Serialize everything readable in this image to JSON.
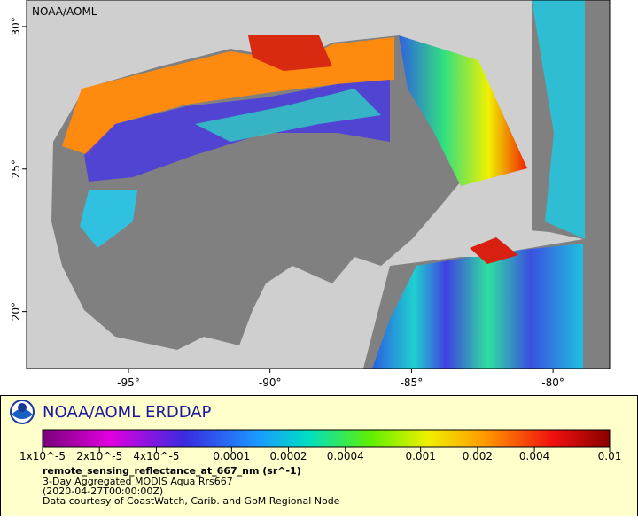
{
  "map": {
    "label": "NOAA/AOML",
    "xlim": [
      -98.6,
      -78.0
    ],
    "ylim": [
      18.0,
      30.93
    ],
    "xticks": [
      {
        "value": -95,
        "label": "-95°"
      },
      {
        "value": -90,
        "label": "-90°"
      },
      {
        "value": -85,
        "label": "-85°"
      },
      {
        "value": -80,
        "label": "-80°"
      }
    ],
    "yticks": [
      {
        "value": 20,
        "label": "20°"
      },
      {
        "value": 25,
        "label": "25°"
      },
      {
        "value": 30,
        "label": "30°"
      }
    ]
  },
  "legend": {
    "title": "NOAA/AOML ERDDAP",
    "scale": "log",
    "lim": [
      1e-05,
      0.01
    ],
    "ticks": [
      {
        "value": 1e-05,
        "label": "1x10^-5"
      },
      {
        "value": 2e-05,
        "label": "2x10^-5"
      },
      {
        "value": 4e-05,
        "label": "4x10^-5"
      },
      0.0001,
      0.0002,
      0.0004,
      0.001,
      0.002,
      0.004,
      0.01
    ],
    "variable": "remote_sensing_reflectance_at_667_nm (sr^-1)",
    "lines": [
      "3-Day Aggregated MODIS Aqua Rrs667",
      "(2020-04-27T00:00:00Z)",
      "Data courtesy of CoastWatch, Carib. and GoM Regional Node"
    ]
  }
}
